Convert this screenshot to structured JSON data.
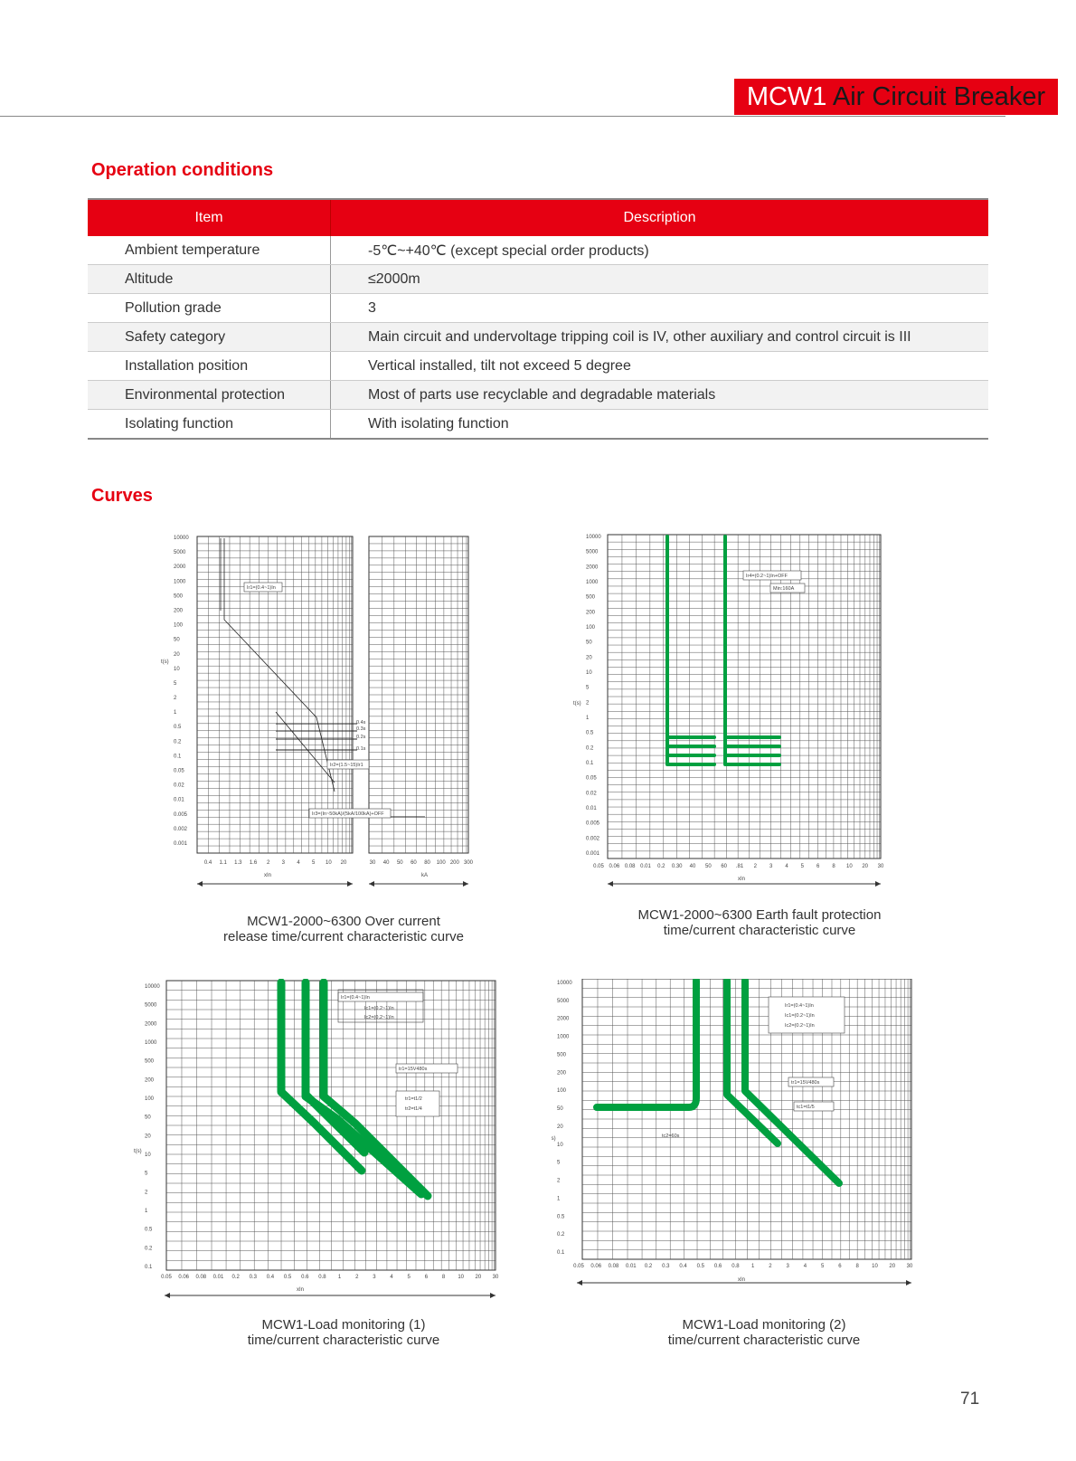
{
  "header": {
    "model": "MCW1",
    "title": " Air Circuit Breaker"
  },
  "sections": {
    "operation": "Operation conditions",
    "curves": "Curves"
  },
  "table": {
    "headers": [
      "Item",
      "Description"
    ],
    "rows": [
      [
        "Ambient temperature",
        "-5℃~+40℃ (except special order products)"
      ],
      [
        "Altitude",
        "≤2000m"
      ],
      [
        "Pollution grade",
        "3"
      ],
      [
        "Safety category",
        "Main circuit and undervoltage tripping coil is IV, other auxiliary and control circuit is III"
      ],
      [
        "Installation position",
        "Vertical installed, tilt not exceed 5 degree"
      ],
      [
        "Environmental protection",
        "Most of parts use recyclable and degradable materials"
      ],
      [
        "Isolating function",
        "With isolating function"
      ]
    ]
  },
  "charts": [
    {
      "caption": [
        "MCW1-2000~6300 Over current",
        "release time/current characteristic curve"
      ],
      "ylabel": "t(s)",
      "xlabel": "xIn",
      "xlabel2": "kA",
      "yticks": [
        "10000",
        "5000",
        "2000",
        "1000",
        "500",
        "200",
        "100",
        "50",
        "20",
        "10",
        "5",
        "2",
        "1",
        "0.5",
        "0.2",
        "0.1",
        "0.05",
        "0.02",
        "0.01",
        "0.005",
        "0.002",
        "0.001"
      ],
      "xticks": [
        "0.4",
        "1.1",
        "1.3",
        "1.6",
        "2",
        "3",
        "4",
        "5",
        "10",
        "20"
      ],
      "xticks2": [
        "30",
        "40",
        "50",
        "60",
        "80",
        "100",
        "200",
        "300"
      ],
      "annotations": [
        "Ir1=(0.4~1)In",
        "0.4s",
        "0.3s",
        "0.2s",
        "0.1s",
        "Ir2=(1.5~15)Ir1",
        "Ir3=(In~50kA)/(5kA/100kA)+OFF"
      ]
    },
    {
      "caption": [
        "MCW1-2000~6300 Earth fault protection",
        "time/current characteristic curve"
      ],
      "ylabel": "t(s)",
      "xlabel": "xIn",
      "yticks": [
        "10000",
        "5000",
        "2000",
        "1000",
        "500",
        "200",
        "100",
        "50",
        "20",
        "10",
        "5",
        "2",
        "1",
        "0.5",
        "0.2",
        "0.1",
        "0.05",
        "0.02",
        "0.01",
        "0.005",
        "0.002",
        "0.001"
      ],
      "xticks": [
        "0.05",
        "0.06",
        "0.08",
        "0.01",
        "0.2",
        "0.30",
        "40",
        "50",
        "60",
        ".81",
        "2",
        "3",
        "4",
        "5",
        "6",
        "8",
        "10",
        "20",
        "30"
      ],
      "annotations": [
        "Ir4=(0.2~1)In+OFF",
        "Min:160A"
      ]
    },
    {
      "caption": [
        "MCW1-Load monitoring (1)",
        "time/current characteristic curve"
      ],
      "ylabel": "t(s)",
      "xlabel": "xIn",
      "yticks": [
        "10000",
        "5000",
        "2000",
        "1000",
        "500",
        "200",
        "100",
        "50",
        "20",
        "10",
        "5",
        "2",
        "1",
        "0.5",
        "0.2",
        "0.1"
      ],
      "xticks": [
        "0.05",
        "0.06",
        "0.08",
        "0.01",
        "0.2",
        "0.3",
        "0.4",
        "0.5",
        "0.6",
        "0.8",
        "1",
        "2",
        "3",
        "4",
        "5",
        "6",
        "8",
        "10",
        "20",
        "30"
      ],
      "annotations": [
        "Ir1=(0.4~1)In",
        "Ic1=(0.2~1)In",
        "Ic2=(0.2~1)In",
        "tr1=15V480s",
        "tr1=t1/2",
        "tr2=t1/4"
      ]
    },
    {
      "caption": [
        "MCW1-Load monitoring (2)",
        "time/current characteristic curve"
      ],
      "ylabel": "t(s)",
      "xlabel": "xIn",
      "yticks": [
        "10000",
        "5000",
        "2000",
        "1000",
        "500",
        "200",
        "100",
        "50",
        "20",
        "10",
        "5",
        "2",
        "1",
        "0.5",
        "0.2",
        "0.1"
      ],
      "xticks": [
        "0.05",
        "0.06",
        "0.08",
        "0.01",
        "0.2",
        "0.3",
        "0.4",
        "0.5",
        "0.6",
        "0.8",
        "1",
        "2",
        "3",
        "4",
        "5",
        "6",
        "8",
        "10",
        "20",
        "30"
      ],
      "annotations": [
        "Ir1=(0.4~1)In",
        "Ic1=(0.2~1)In",
        "Ic2=(0.2~1)In",
        "tr1=15V480s",
        "tc1=t1/5",
        "tc2=60s"
      ]
    }
  ],
  "page_number": "71",
  "colors": {
    "accent": "#e60012",
    "curve": "#00a040"
  }
}
